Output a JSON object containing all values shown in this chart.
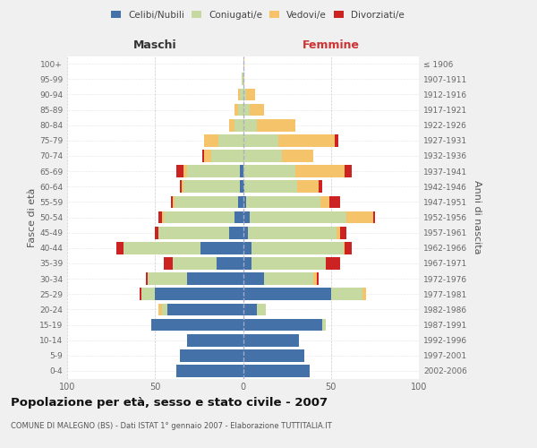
{
  "age_groups": [
    "0-4",
    "5-9",
    "10-14",
    "15-19",
    "20-24",
    "25-29",
    "30-34",
    "35-39",
    "40-44",
    "45-49",
    "50-54",
    "55-59",
    "60-64",
    "65-69",
    "70-74",
    "75-79",
    "80-84",
    "85-89",
    "90-94",
    "95-99",
    "100+"
  ],
  "birth_years": [
    "2002-2006",
    "1997-2001",
    "1992-1996",
    "1987-1991",
    "1982-1986",
    "1977-1981",
    "1972-1976",
    "1967-1971",
    "1962-1966",
    "1957-1961",
    "1952-1956",
    "1947-1951",
    "1942-1946",
    "1937-1941",
    "1932-1936",
    "1927-1931",
    "1922-1926",
    "1917-1921",
    "1912-1916",
    "1907-1911",
    "≤ 1906"
  ],
  "maschi": {
    "celibi": [
      38,
      36,
      32,
      52,
      43,
      50,
      32,
      15,
      24,
      8,
      5,
      3,
      2,
      2,
      0,
      0,
      0,
      0,
      0,
      0,
      0
    ],
    "coniugati": [
      0,
      0,
      0,
      0,
      3,
      8,
      22,
      25,
      44,
      40,
      40,
      36,
      32,
      30,
      18,
      14,
      5,
      3,
      2,
      1,
      0
    ],
    "vedovi": [
      0,
      0,
      0,
      0,
      2,
      0,
      0,
      0,
      0,
      0,
      1,
      1,
      1,
      2,
      4,
      8,
      3,
      2,
      1,
      0,
      0
    ],
    "divorziati": [
      0,
      0,
      0,
      0,
      0,
      1,
      1,
      5,
      4,
      2,
      2,
      1,
      1,
      4,
      1,
      0,
      0,
      0,
      0,
      0,
      0
    ]
  },
  "femmine": {
    "nubili": [
      38,
      35,
      32,
      45,
      8,
      50,
      12,
      5,
      5,
      3,
      4,
      2,
      1,
      0,
      0,
      0,
      0,
      0,
      0,
      0,
      0
    ],
    "coniugate": [
      0,
      0,
      0,
      2,
      5,
      18,
      28,
      42,
      52,
      50,
      55,
      42,
      30,
      30,
      22,
      20,
      8,
      4,
      2,
      0,
      0
    ],
    "vedove": [
      0,
      0,
      0,
      0,
      0,
      2,
      2,
      0,
      1,
      2,
      15,
      5,
      12,
      28,
      18,
      32,
      22,
      8,
      5,
      1,
      1
    ],
    "divorziate": [
      0,
      0,
      0,
      0,
      0,
      0,
      1,
      8,
      4,
      4,
      1,
      6,
      2,
      4,
      0,
      2,
      0,
      0,
      0,
      0,
      0
    ]
  },
  "colors": {
    "celibi": "#4472a8",
    "coniugati": "#c5d9a0",
    "vedovi": "#f5c46a",
    "divorziati": "#cc2222"
  },
  "xlim": 100,
  "title": "Popolazione per età, sesso e stato civile - 2007",
  "subtitle": "COMUNE DI MALEGNO (BS) - Dati ISTAT 1° gennaio 2007 - Elaborazione TUTTITALIA.IT",
  "ylabel_left": "Fasce di età",
  "ylabel_right": "Anni di nascita",
  "xlabel_maschi": "Maschi",
  "xlabel_femmine": "Femmine",
  "bg_color": "#f0f0f0",
  "plot_bg_color": "#ffffff",
  "legend_labels": [
    "Celibi/Nubili",
    "Coniugati/e",
    "Vedovi/e",
    "Divorziati/e"
  ]
}
